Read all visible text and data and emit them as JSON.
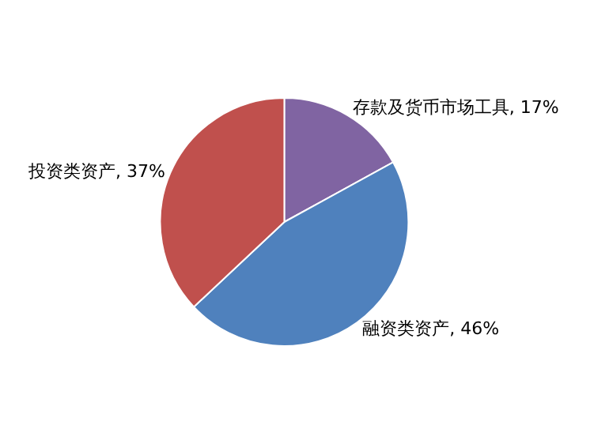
{
  "chart_data": {
    "type": "pie",
    "categories": [
      "存款及货币市场工具",
      "融资类资产",
      "投资类资产"
    ],
    "values": [
      17,
      46,
      37
    ],
    "value_labels": [
      "17%",
      "46%",
      "37%"
    ],
    "colors": [
      "#8064a2",
      "#4f81bd",
      "#c0504d"
    ],
    "legend": false
  }
}
